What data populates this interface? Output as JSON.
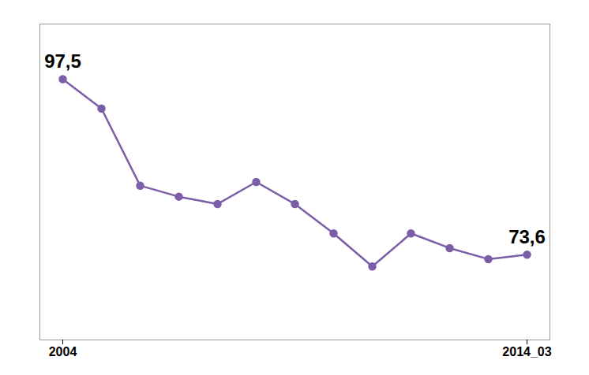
{
  "chart_data": {
    "type": "line",
    "categories": [
      "2004",
      null,
      null,
      null,
      null,
      null,
      null,
      null,
      null,
      null,
      null,
      null,
      "2014_03"
    ],
    "values": [
      97.5,
      93.5,
      83.0,
      81.5,
      80.5,
      83.5,
      80.5,
      76.5,
      72.0,
      76.5,
      74.5,
      73.0,
      73.6
    ],
    "value_labels": [
      "97,5",
      null,
      null,
      null,
      null,
      null,
      null,
      null,
      null,
      null,
      null,
      null,
      "73,6"
    ],
    "data_labels": true,
    "color": "#7B5EA7",
    "marker": "o",
    "ylim": [
      62,
      105
    ],
    "tick_labels": "x",
    "grid": false
  }
}
